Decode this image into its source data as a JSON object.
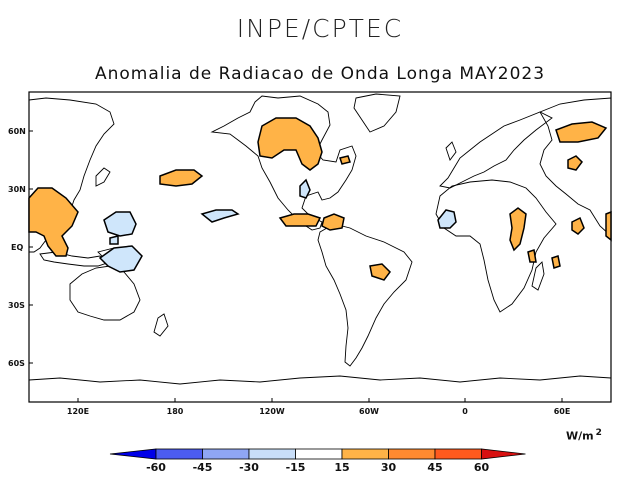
{
  "header": {
    "org_title": "INPE/CPTEC",
    "map_title": "Anomalia de Radiacao de Onda Longa MAY2023"
  },
  "axes": {
    "lat_labels": [
      "60N",
      "30N",
      "EQ",
      "30S",
      "60S"
    ],
    "lon_labels": [
      "120E",
      "180",
      "120W",
      "60W",
      "0",
      "60E"
    ]
  },
  "colorbar": {
    "levels": [
      "-60",
      "-45",
      "-30",
      "-15",
      "15",
      "30",
      "45",
      "60"
    ],
    "colors": [
      "#0000e8",
      "#4c5cf0",
      "#8fa6f4",
      "#c9def8",
      "#ffffff",
      "#ffb347",
      "#ff8a30",
      "#ff5a1e",
      "#d81010"
    ],
    "units": "W/m",
    "units_exp": "2"
  }
}
